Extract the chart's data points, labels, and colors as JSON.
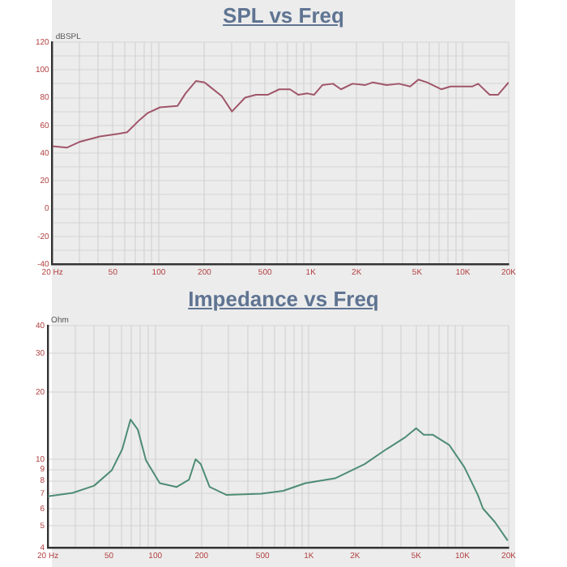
{
  "chart_data": [
    {
      "type": "line",
      "title": "SPL vs Freq",
      "ylabel": "dBSPL",
      "log": "x",
      "grid": true,
      "legend": false,
      "marker": "none",
      "line_style": "solid",
      "xlim": [
        20,
        20000
      ],
      "ylim": [
        -40,
        120
      ],
      "xticks": [
        {
          "value": 20,
          "label": "20 Hz"
        },
        {
          "value": 30,
          "label": null
        },
        {
          "value": 40,
          "label": null
        },
        50,
        {
          "value": 60,
          "label": null
        },
        {
          "value": 70,
          "label": null
        },
        {
          "value": 80,
          "label": null
        },
        {
          "value": 90,
          "label": null
        },
        100,
        200,
        {
          "value": 300,
          "label": null
        },
        {
          "value": 400,
          "label": null
        },
        500,
        {
          "value": 600,
          "label": null
        },
        {
          "value": 700,
          "label": null
        },
        {
          "value": 800,
          "label": null
        },
        {
          "value": 900,
          "label": null
        },
        {
          "value": 1000,
          "label": "1K"
        },
        {
          "value": 2000,
          "label": "2K"
        },
        {
          "value": 3000,
          "label": null
        },
        {
          "value": 4000,
          "label": null
        },
        {
          "value": 5000,
          "label": "5K"
        },
        {
          "value": 6000,
          "label": null
        },
        {
          "value": 7000,
          "label": null
        },
        {
          "value": 8000,
          "label": null
        },
        {
          "value": 9000,
          "label": null
        },
        {
          "value": 10000,
          "label": "10K"
        },
        {
          "value": 20000,
          "label": "20K"
        }
      ],
      "yticks": [
        -40,
        {
          "value": -30,
          "label": null
        },
        -20,
        {
          "value": -10,
          "label": null
        },
        0,
        {
          "value": 10,
          "label": null
        },
        20,
        {
          "value": 30,
          "label": null
        },
        40,
        {
          "value": 50,
          "label": null
        },
        60,
        {
          "value": 70,
          "label": null
        },
        80,
        {
          "value": 90,
          "label": null
        },
        100,
        {
          "value": 110,
          "label": null
        },
        120
      ],
      "series": [
        {
          "color": "#a0566a",
          "x": [
            20,
            25,
            30,
            41,
            55,
            62,
            75,
            85,
            102,
            133,
            150,
            176,
            200,
            260,
            303,
            370,
            436,
            520,
            620,
            730,
            830,
            950,
            1050,
            1190,
            1400,
            1580,
            1880,
            2270,
            2560,
            3150,
            3800,
            4500,
            5100,
            5800,
            7200,
            8300,
            11500,
            12600,
            15000,
            17000,
            20000
          ],
          "values": [
            45,
            44,
            48,
            52,
            54,
            55,
            64,
            69,
            73,
            74,
            83,
            92,
            91,
            81,
            70,
            80,
            82,
            82,
            86,
            86,
            82,
            83,
            82,
            89,
            90,
            86,
            90,
            89,
            91,
            89,
            90,
            88,
            93,
            91,
            86,
            88,
            88,
            90,
            82,
            82,
            91
          ]
        }
      ]
    },
    {
      "type": "line",
      "title": "Impedance vs Freq",
      "ylabel": "Ohm",
      "log": "xy",
      "grid": true,
      "legend": false,
      "marker": "none",
      "line_style": "solid",
      "xlim": [
        20,
        20000
      ],
      "ylim": [
        4,
        40
      ],
      "xticks": [
        {
          "value": 20,
          "label": "20 Hz"
        },
        {
          "value": 30,
          "label": null
        },
        {
          "value": 40,
          "label": null
        },
        50,
        {
          "value": 60,
          "label": null
        },
        {
          "value": 70,
          "label": null
        },
        {
          "value": 80,
          "label": null
        },
        {
          "value": 90,
          "label": null
        },
        100,
        200,
        {
          "value": 300,
          "label": null
        },
        {
          "value": 400,
          "label": null
        },
        500,
        {
          "value": 600,
          "label": null
        },
        {
          "value": 700,
          "label": null
        },
        {
          "value": 800,
          "label": null
        },
        {
          "value": 900,
          "label": null
        },
        {
          "value": 1000,
          "label": "1K"
        },
        {
          "value": 2000,
          "label": "2K"
        },
        {
          "value": 3000,
          "label": null
        },
        {
          "value": 4000,
          "label": null
        },
        {
          "value": 5000,
          "label": "5K"
        },
        {
          "value": 6000,
          "label": null
        },
        {
          "value": 7000,
          "label": null
        },
        {
          "value": 8000,
          "label": null
        },
        {
          "value": 9000,
          "label": null
        },
        {
          "value": 10000,
          "label": "10K"
        },
        {
          "value": 20000,
          "label": "20K"
        }
      ],
      "yticks": [
        4,
        5,
        6,
        7,
        8,
        9,
        10,
        20,
        30,
        40
      ],
      "series": [
        {
          "color": "#4e8c74",
          "x": [
            20,
            29,
            40,
            52,
            61,
            69,
            77,
            87,
            107,
            138,
            166,
            183,
            198,
            226,
            292,
            490,
            680,
            950,
            1480,
            2300,
            3200,
            4200,
            5000,
            5600,
            6400,
            8200,
            10300,
            12600,
            13600,
            16300,
            19700
          ],
          "values": [
            6.8,
            7.05,
            7.6,
            8.9,
            11.1,
            15.1,
            13.6,
            9.9,
            7.8,
            7.5,
            8.1,
            10,
            9.5,
            7.5,
            6.9,
            7.0,
            7.2,
            7.8,
            8.2,
            9.5,
            11.1,
            12.5,
            13.8,
            12.9,
            12.9,
            11.6,
            9.2,
            6.9,
            6.0,
            5.2,
            4.3
          ]
        }
      ]
    }
  ]
}
